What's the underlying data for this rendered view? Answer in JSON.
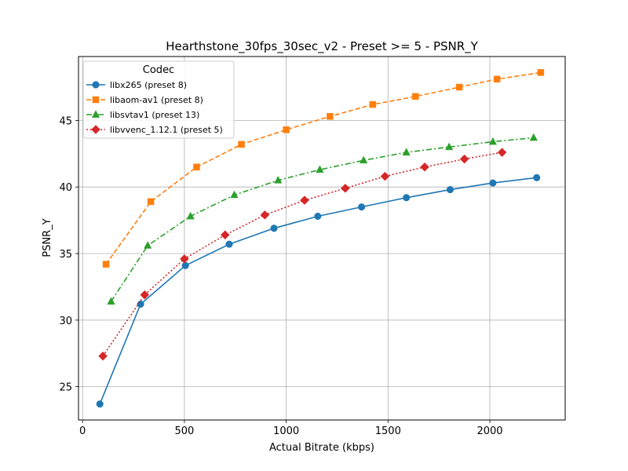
{
  "chart_data": {
    "type": "line",
    "title": "Hearthstone_30fps_30sec_v2 - Preset >= 5 - PSNR_Y",
    "xlabel": "Actual Bitrate (kbps)",
    "ylabel": "PSNR_Y",
    "xlim": [
      -20,
      2370
    ],
    "ylim": [
      22.5,
      49.8
    ],
    "xticks": [
      0,
      500,
      1000,
      1500,
      2000
    ],
    "yticks": [
      25,
      30,
      35,
      40,
      45
    ],
    "grid": true,
    "legend": {
      "title": "Codec",
      "position": "top-left"
    },
    "series": [
      {
        "name": "libx265 (preset 8)",
        "color": "#1f77b4",
        "marker": "circle",
        "line_style": "solid",
        "x": [
          85,
          285,
          505,
          720,
          940,
          1155,
          1370,
          1590,
          1805,
          2015,
          2230
        ],
        "y": [
          23.7,
          31.2,
          34.1,
          35.7,
          36.9,
          37.8,
          38.5,
          39.2,
          39.8,
          40.3,
          40.7
        ]
      },
      {
        "name": "libaom-av1 (preset 8)",
        "color": "#ff7f0e",
        "marker": "square",
        "line_style": "dashed",
        "x": [
          115,
          335,
          560,
          780,
          1000,
          1215,
          1425,
          1635,
          1850,
          2035,
          2250
        ],
        "y": [
          34.2,
          38.9,
          41.5,
          43.2,
          44.3,
          45.3,
          46.2,
          46.8,
          47.5,
          48.1,
          48.6
        ]
      },
      {
        "name": "libsvtav1 (preset 13)",
        "color": "#2ca02c",
        "marker": "triangle",
        "line_style": "dashdot",
        "x": [
          140,
          320,
          530,
          745,
          960,
          1165,
          1380,
          1590,
          1800,
          2015,
          2215
        ],
        "y": [
          31.4,
          35.6,
          37.8,
          39.4,
          40.5,
          41.3,
          42.0,
          42.6,
          43.0,
          43.4,
          43.7
        ]
      },
      {
        "name": "libvvenc_1.12.1 (preset 5)",
        "color": "#d62728",
        "marker": "diamond",
        "line_style": "dotted",
        "x": [
          100,
          305,
          500,
          700,
          895,
          1090,
          1290,
          1485,
          1680,
          1875,
          2060
        ],
        "y": [
          27.3,
          31.9,
          34.6,
          36.4,
          37.9,
          39.0,
          39.9,
          40.8,
          41.5,
          42.1,
          42.6
        ]
      }
    ]
  }
}
